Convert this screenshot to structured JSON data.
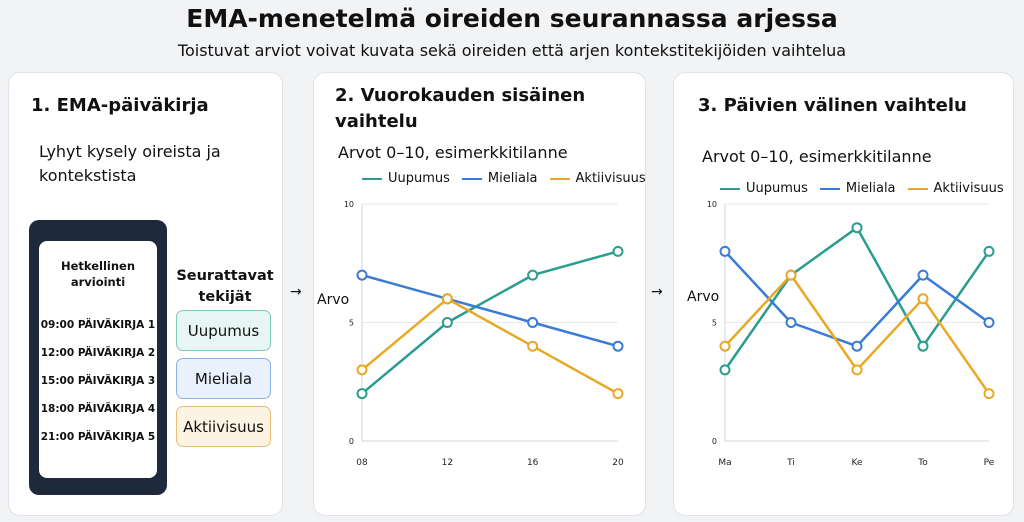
{
  "header": {
    "title": "EMA-menetelmä oireiden seurannassa arjessa",
    "subtitle": "Toistuvat arviot voivat kuvata sekä oireiden että arjen kontekstitekijöiden vaihtelua"
  },
  "panel1": {
    "title": "1. EMA-päiväkirja",
    "description": "Lyhyt kysely oireista ja kontekstista",
    "phone_heading": "Hetkellinen arviointi",
    "entries": [
      "09:00 PÄIVÄKIRJA 1",
      "12:00 PÄIVÄKIRJA 2",
      "15:00 PÄIVÄKIRJA 3",
      "18:00 PÄIVÄKIRJA 4",
      "21:00 PÄIVÄKIRJA 5"
    ],
    "tracked_heading": "Seurattavat tekijät",
    "tracked": [
      "Uupumus",
      "Mieliala",
      "Aktiivisuus"
    ]
  },
  "arrow": "→",
  "colors": {
    "uupumus": "#2a9d8f",
    "mieliala": "#3a7bd5",
    "aktiivisuus": "#e9a825"
  },
  "chart_data": [
    {
      "type": "line",
      "title": "2. Vuorokauden sisäinen vaihtelu",
      "subtitle": "Arvot 0–10, esimerkkitilanne",
      "ylabel": "Arvo",
      "ylim": [
        0,
        10
      ],
      "yticks": [
        0,
        5,
        10
      ],
      "categories": [
        "08",
        "12",
        "16",
        "20"
      ],
      "series": [
        {
          "name": "Uupumus",
          "color": "#2a9d8f",
          "values": [
            2,
            5,
            7,
            8
          ]
        },
        {
          "name": "Mieliala",
          "color": "#3a7bd5",
          "values": [
            7,
            6,
            5,
            4
          ]
        },
        {
          "name": "Aktiivisuus",
          "color": "#e9a825",
          "values": [
            3,
            6,
            4,
            2
          ]
        }
      ],
      "legend": "top"
    },
    {
      "type": "line",
      "title": "3. Päivien välinen vaihtelu",
      "subtitle": "Arvot 0–10, esimerkkitilanne",
      "ylabel": "Arvo",
      "ylim": [
        0,
        10
      ],
      "yticks": [
        0,
        5,
        10
      ],
      "categories": [
        "Ma",
        "Ti",
        "Ke",
        "To",
        "Pe"
      ],
      "series": [
        {
          "name": "Uupumus",
          "color": "#2a9d8f",
          "values": [
            3,
            7,
            9,
            4,
            8
          ]
        },
        {
          "name": "Mieliala",
          "color": "#3a7bd5",
          "values": [
            8,
            5,
            4,
            7,
            5
          ]
        },
        {
          "name": "Aktiivisuus",
          "color": "#e9a825",
          "values": [
            4,
            7,
            3,
            6,
            2
          ]
        }
      ],
      "legend": "top"
    }
  ]
}
